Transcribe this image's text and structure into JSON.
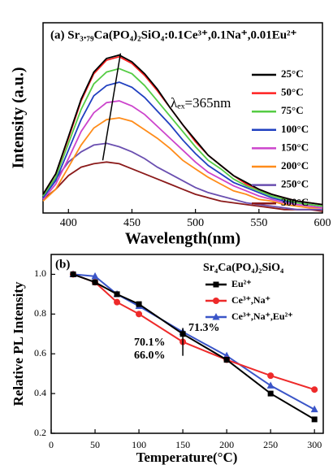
{
  "chart_data": [
    {
      "type": "line",
      "title": "(a) Sr₃.₇₉Ca(PO₄)₂SiO₄:0.1Ce³⁺,0.1Na⁺,0.01Eu²⁺",
      "x_label": "Wavelength(nm)",
      "y_label": "Intensity (a.u.)",
      "annotation": "λₑₓ=365nm",
      "x": [
        380,
        390,
        400,
        410,
        420,
        430,
        440,
        450,
        460,
        470,
        480,
        490,
        500,
        510,
        520,
        530,
        540,
        550,
        560,
        570,
        580,
        590,
        600
      ],
      "xlim": [
        380,
        600
      ],
      "xticks": [
        400,
        450,
        500,
        550,
        600
      ],
      "ylim": [
        0,
        1.12
      ],
      "series": [
        {
          "name": "25°C",
          "color": "#000000",
          "values": [
            0.11,
            0.23,
            0.45,
            0.67,
            0.83,
            0.91,
            0.93,
            0.89,
            0.82,
            0.73,
            0.62,
            0.52,
            0.43,
            0.34,
            0.28,
            0.22,
            0.18,
            0.14,
            0.11,
            0.09,
            0.07,
            0.06,
            0.05
          ]
        },
        {
          "name": "50°C",
          "color": "#ff2020",
          "values": [
            0.11,
            0.23,
            0.44,
            0.66,
            0.82,
            0.9,
            0.92,
            0.88,
            0.81,
            0.72,
            0.62,
            0.52,
            0.42,
            0.34,
            0.28,
            0.22,
            0.17,
            0.14,
            0.11,
            0.09,
            0.07,
            0.06,
            0.05
          ]
        },
        {
          "name": "75°C",
          "color": "#55cc44",
          "values": [
            0.1,
            0.21,
            0.41,
            0.61,
            0.76,
            0.83,
            0.85,
            0.82,
            0.75,
            0.66,
            0.57,
            0.48,
            0.39,
            0.31,
            0.26,
            0.2,
            0.16,
            0.13,
            0.1,
            0.08,
            0.06,
            0.05,
            0.04
          ]
        },
        {
          "name": "100°C",
          "color": "#2040c0",
          "values": [
            0.09,
            0.19,
            0.37,
            0.55,
            0.69,
            0.75,
            0.77,
            0.74,
            0.68,
            0.6,
            0.52,
            0.43,
            0.35,
            0.28,
            0.23,
            0.18,
            0.15,
            0.12,
            0.09,
            0.07,
            0.06,
            0.05,
            0.04
          ]
        },
        {
          "name": "150°C",
          "color": "#cc44cc",
          "values": [
            0.08,
            0.17,
            0.32,
            0.48,
            0.59,
            0.65,
            0.66,
            0.63,
            0.58,
            0.51,
            0.44,
            0.37,
            0.3,
            0.24,
            0.2,
            0.16,
            0.13,
            0.1,
            0.08,
            0.06,
            0.05,
            0.04,
            0.03
          ]
        },
        {
          "name": "200°C",
          "color": "#ff8c1a",
          "values": [
            0.07,
            0.14,
            0.27,
            0.4,
            0.5,
            0.55,
            0.56,
            0.54,
            0.49,
            0.44,
            0.38,
            0.31,
            0.26,
            0.21,
            0.17,
            0.13,
            0.11,
            0.08,
            0.07,
            0.05,
            0.04,
            0.03,
            0.03
          ]
        },
        {
          "name": "250°C",
          "color": "#6a4fb0",
          "values": [
            0.1,
            0.2,
            0.3,
            0.36,
            0.4,
            0.41,
            0.39,
            0.36,
            0.32,
            0.27,
            0.23,
            0.19,
            0.15,
            0.12,
            0.1,
            0.08,
            0.06,
            0.05,
            0.04,
            0.03,
            0.02,
            0.02,
            0.02
          ]
        },
        {
          "name": "300°C",
          "color": "#8b1a1a",
          "values": [
            0.08,
            0.14,
            0.22,
            0.27,
            0.29,
            0.3,
            0.29,
            0.26,
            0.23,
            0.2,
            0.17,
            0.14,
            0.11,
            0.09,
            0.07,
            0.06,
            0.05,
            0.04,
            0.03,
            0.02,
            0.02,
            0.02,
            0.01
          ]
        }
      ],
      "peak_line": {
        "x": [
          427,
          441
        ],
        "y": [
          0.31,
          0.94
        ]
      }
    },
    {
      "type": "line",
      "title": "(b)",
      "legend_title": "Sr₄Ca(PO₄)₂SiO₄",
      "x_label": "Temperature(°C)",
      "y_label": "Relative PL Intensity",
      "x": [
        25,
        50,
        75,
        100,
        150,
        200,
        250,
        300
      ],
      "xlim": [
        0,
        310
      ],
      "xticks": [
        0,
        50,
        100,
        150,
        200,
        250,
        300
      ],
      "ylim": [
        0.2,
        1.1
      ],
      "yticks": [
        0.2,
        0.4,
        0.6,
        0.8,
        {
          "value": 1,
          "label": "1.0"
        }
      ],
      "series": [
        {
          "name": "Eu²⁺",
          "color": "#000000",
          "marker": "square",
          "values": [
            1.0,
            0.96,
            0.9,
            0.85,
            0.7,
            0.57,
            0.4,
            0.27
          ]
        },
        {
          "name": "Ce³⁺,Na⁺",
          "color": "#ee2a2a",
          "marker": "circle",
          "values": [
            1.0,
            0.96,
            0.86,
            0.8,
            0.66,
            0.57,
            0.49,
            0.42
          ]
        },
        {
          "name": "Ce³⁺,Na⁺,Eu²⁺",
          "color": "#3a55c8",
          "marker": "triangle",
          "values": [
            1.0,
            0.99,
            0.9,
            0.84,
            0.71,
            0.59,
            0.44,
            0.32
          ]
        }
      ],
      "annotations": [
        "71.3%",
        "70.1%",
        "66.0%"
      ],
      "marker_line": {
        "x": 150,
        "y": [
          0.59,
          0.73
        ]
      }
    }
  ]
}
